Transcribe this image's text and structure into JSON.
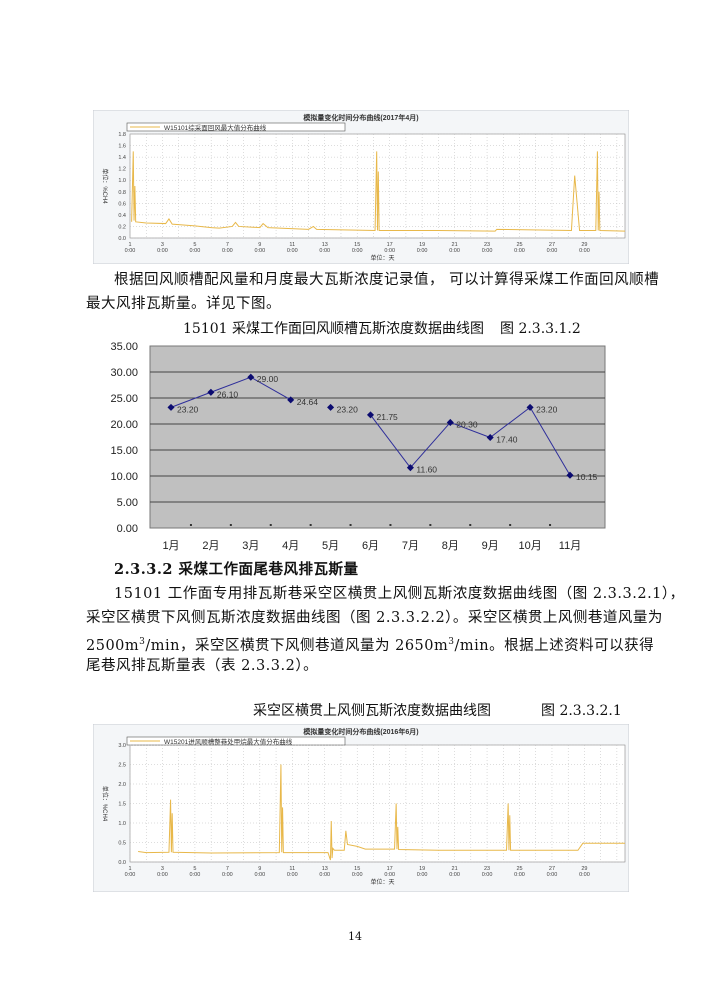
{
  "paragraph1": {
    "line1": "根据回风顺槽配风量和月度最大瓦斯浓度记录值， 可以计算得采煤工作面回风顺槽",
    "line2": "最大风排瓦斯量。详见下图。"
  },
  "figure2_caption": {
    "title": "15101 采煤工作面回风顺槽瓦斯浓度数据曲线图",
    "number": "图 2.3.3.1.2"
  },
  "section_heading": "2.3.3.2 采煤工作面尾巷风排瓦斯量",
  "paragraph2": {
    "line1": "15101 工作面专用排瓦斯巷采空区横贯上风侧瓦斯浓度数据曲线图（图 2.3.3.2.1），",
    "line2": "采空区横贯下风侧瓦斯浓度数据曲线图（图 2.3.3.2.2）。采空区横贯上风侧巷道风量为",
    "line3a": "2500m",
    "line3b": "3",
    "line3c": "/min，采空区横贯下风侧巷道风量为 2650m",
    "line3d": "3",
    "line3e": "/min。根据上述资料可以获得",
    "line4": "尾巷风排瓦斯量表（表 2.3.3.2）。"
  },
  "figure3_caption": {
    "title": "采空区横贯上风侧瓦斯浓度数据曲线图",
    "number": "图 2.3.3.2.1"
  },
  "page_number": "14",
  "chart_data": [
    {
      "type": "line",
      "title": "模拟量变化时间分布曲线(2017年4月)",
      "legend": "W15101综采面回风最大值分布曲线",
      "xlabel": "单位：天",
      "ylabel": "单位：%CH4",
      "ylim": [
        0,
        1.8
      ],
      "yticks": [
        "0.0",
        "0.2",
        "0.4",
        "0.6",
        "0.8",
        "1.0",
        "1.2",
        "1.4",
        "1.6",
        "1.8"
      ],
      "xticks": [
        "1",
        "3",
        "5",
        "7",
        "9",
        "11",
        "13",
        "15",
        "17",
        "19",
        "21",
        "23",
        "25",
        "27",
        "29"
      ],
      "xtick_sub": "0:00",
      "xlim": [
        1,
        31.5
      ],
      "grid": true,
      "color": "#e8b84a",
      "points": [
        [
          1.1,
          0.28
        ],
        [
          1.2,
          1.5
        ],
        [
          1.25,
          0.3
        ],
        [
          1.3,
          0.9
        ],
        [
          1.35,
          0.28
        ],
        [
          2,
          0.26
        ],
        [
          3.2,
          0.25
        ],
        [
          3.4,
          0.33
        ],
        [
          3.6,
          0.24
        ],
        [
          5,
          0.21
        ],
        [
          6,
          0.18
        ],
        [
          6.5,
          0.17
        ],
        [
          7.3,
          0.2
        ],
        [
          7.5,
          0.27
        ],
        [
          7.7,
          0.2
        ],
        [
          9,
          0.18
        ],
        [
          9.2,
          0.25
        ],
        [
          9.5,
          0.18
        ],
        [
          12,
          0.15
        ],
        [
          12.3,
          0.2
        ],
        [
          12.5,
          0.15
        ],
        [
          16.1,
          0.13
        ],
        [
          16.2,
          1.5
        ],
        [
          16.25,
          0.13
        ],
        [
          16.3,
          1.15
        ],
        [
          16.35,
          0.13
        ],
        [
          20,
          0.13
        ],
        [
          23.5,
          0.12
        ],
        [
          23.6,
          0.15
        ],
        [
          28.2,
          0.13
        ],
        [
          28.4,
          1.08
        ],
        [
          28.7,
          0.13
        ],
        [
          29.7,
          0.13
        ],
        [
          29.8,
          1.5
        ],
        [
          29.85,
          0.13
        ],
        [
          29.9,
          0.8
        ],
        [
          29.95,
          0.13
        ],
        [
          31.5,
          0.12
        ]
      ]
    },
    {
      "type": "line",
      "title": "",
      "categories": [
        "1月",
        "2月",
        "3月",
        "4月",
        "5月",
        "6月",
        "7月",
        "8月",
        "9月",
        "10月",
        "11月"
      ],
      "values": [
        23.2,
        26.1,
        29.0,
        24.64,
        23.2,
        21.75,
        11.6,
        20.3,
        17.4,
        23.2,
        10.15
      ],
      "labels": [
        "23.20",
        "26.10",
        "29.00",
        "24.64",
        "23.20",
        "21.75",
        "11.60",
        "20.30",
        "17.40",
        "23.20",
        "10.15"
      ],
      "segments_drawn": [
        [
          0,
          1
        ],
        [
          1,
          2
        ],
        [
          2,
          3
        ],
        [
          5,
          6
        ],
        [
          6,
          7
        ],
        [
          7,
          8
        ],
        [
          8,
          9
        ],
        [
          9,
          10
        ]
      ],
      "ylim": [
        0,
        35
      ],
      "yticks": [
        "0.00",
        "5.00",
        "10.00",
        "15.00",
        "20.00",
        "25.00",
        "30.00",
        "35.00"
      ],
      "grid": true,
      "background": "#c0c0c0",
      "color": "#2e2e9a"
    },
    {
      "type": "line",
      "title": "模拟量变化时间分布曲线(2016年6月)",
      "legend": "W15201进风顺槽整巷处甲烷最大值分布曲线",
      "xlabel": "单位：天",
      "ylabel": "单位：%CH4",
      "ylim": [
        0,
        3.0
      ],
      "yticks": [
        "0.0",
        "0.5",
        "1.0",
        "1.5",
        "2.0",
        "2.5",
        "3.0"
      ],
      "xticks": [
        "1",
        "3",
        "5",
        "7",
        "9",
        "11",
        "13",
        "15",
        "17",
        "19",
        "21",
        "23",
        "25",
        "27",
        "29"
      ],
      "xtick_sub": "0:00",
      "xlim": [
        1,
        31.5
      ],
      "grid": true,
      "color": "#e8b84a",
      "points": [
        [
          1.5,
          0.27
        ],
        [
          2,
          0.24
        ],
        [
          3.4,
          0.25
        ],
        [
          3.5,
          1.6
        ],
        [
          3.55,
          0.25
        ],
        [
          3.6,
          1.25
        ],
        [
          3.65,
          0.25
        ],
        [
          6,
          0.23
        ],
        [
          10.2,
          0.24
        ],
        [
          10.3,
          2.5
        ],
        [
          10.35,
          0.25
        ],
        [
          10.4,
          1.4
        ],
        [
          10.45,
          0.24
        ],
        [
          13.2,
          0.24
        ],
        [
          13.35,
          0.05
        ],
        [
          13.4,
          1.05
        ],
        [
          13.45,
          0.1
        ],
        [
          13.5,
          0.35
        ],
        [
          13.6,
          0.3
        ],
        [
          14.2,
          0.3
        ],
        [
          14.3,
          0.8
        ],
        [
          14.4,
          0.45
        ],
        [
          15,
          0.4
        ],
        [
          15.5,
          0.33
        ],
        [
          17.3,
          0.33
        ],
        [
          17.4,
          1.5
        ],
        [
          17.45,
          0.33
        ],
        [
          17.5,
          0.9
        ],
        [
          17.55,
          0.32
        ],
        [
          20,
          0.3
        ],
        [
          24.2,
          0.3
        ],
        [
          24.3,
          1.5
        ],
        [
          24.35,
          0.3
        ],
        [
          24.4,
          1.2
        ],
        [
          24.45,
          0.3
        ],
        [
          28.6,
          0.3
        ],
        [
          28.9,
          0.48
        ],
        [
          31.5,
          0.48
        ]
      ]
    }
  ]
}
